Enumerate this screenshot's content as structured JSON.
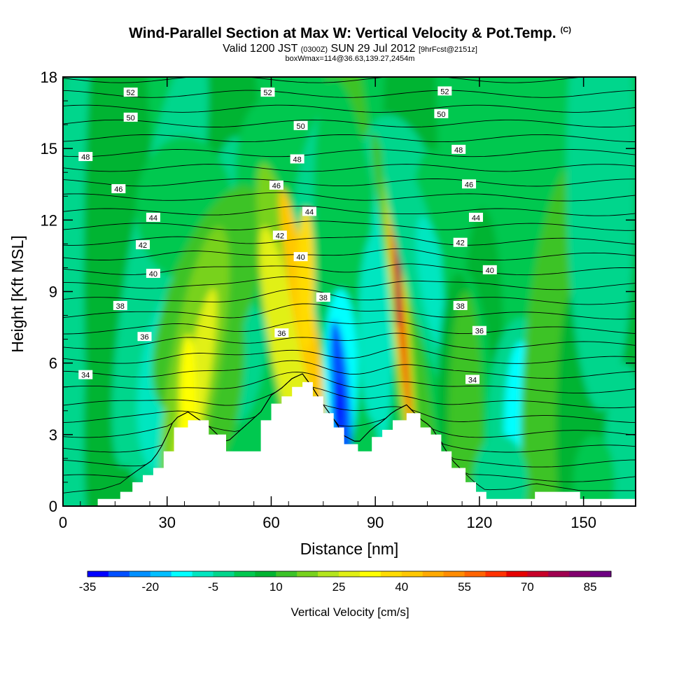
{
  "header": {
    "title": "Wind-Parallel Section at Max W: Vertical Velocity & Pot.Temp.",
    "copyright_mark": "(C)",
    "valid_prefix": "Valid 1200 JST",
    "valid_utc": "(0300Z)",
    "valid_date": "SUN 29 Jul 2012",
    "forecast_info": "[9hrFcst@2151z]",
    "box_info": "boxWmax=114@36.63,139.27,2454m"
  },
  "chart_data": {
    "type": "heatmap",
    "xlabel": "Distance [nm]",
    "ylabel": "Height [Kft MSL]",
    "xlim": [
      0,
      165
    ],
    "ylim": [
      0,
      18
    ],
    "x_ticks": [
      0,
      30,
      60,
      90,
      120,
      150
    ],
    "y_ticks": [
      0,
      3,
      6,
      9,
      12,
      15,
      18
    ],
    "colorbar": {
      "title": "Vertical Velocity [cm/s]",
      "tick_labels": [
        "-35",
        "-20",
        "-5",
        "10",
        "25",
        "40",
        "55",
        "70",
        "85"
      ],
      "levels_start": -35,
      "level_step": 5,
      "colors": [
        "#0000ff",
        "#0050ff",
        "#0090ff",
        "#00bfff",
        "#00ffff",
        "#00e6c0",
        "#00d68c",
        "#00c850",
        "#00b432",
        "#3cc328",
        "#78d21e",
        "#b4e61e",
        "#e1f014",
        "#ffff00",
        "#ffdc00",
        "#ffc800",
        "#ffaa00",
        "#ff8c00",
        "#ff6400",
        "#ff3200",
        "#e60000",
        "#c80028",
        "#a00050",
        "#82006e",
        "#6e0082"
      ]
    },
    "contour_labels": [
      {
        "text": "52",
        "x": 19.5,
        "y": 17.35
      },
      {
        "text": "52",
        "x": 59,
        "y": 17.35
      },
      {
        "text": "52",
        "x": 110,
        "y": 17.4
      },
      {
        "text": "50",
        "x": 19.5,
        "y": 16.3
      },
      {
        "text": "50",
        "x": 68.5,
        "y": 15.95
      },
      {
        "text": "50",
        "x": 109,
        "y": 16.45
      },
      {
        "text": "48",
        "x": 6.5,
        "y": 14.65
      },
      {
        "text": "48",
        "x": 67.5,
        "y": 14.55
      },
      {
        "text": "48",
        "x": 114,
        "y": 14.95
      },
      {
        "text": "46",
        "x": 16,
        "y": 13.3
      },
      {
        "text": "46",
        "x": 61.5,
        "y": 13.45
      },
      {
        "text": "46",
        "x": 117,
        "y": 13.5
      },
      {
        "text": "44",
        "x": 26,
        "y": 12.1
      },
      {
        "text": "44",
        "x": 71,
        "y": 12.35
      },
      {
        "text": "44",
        "x": 119,
        "y": 12.1
      },
      {
        "text": "42",
        "x": 23,
        "y": 10.95
      },
      {
        "text": "42",
        "x": 62.5,
        "y": 11.35
      },
      {
        "text": "42",
        "x": 114.5,
        "y": 11.05
      },
      {
        "text": "40",
        "x": 26,
        "y": 9.75
      },
      {
        "text": "40",
        "x": 68.5,
        "y": 10.45
      },
      {
        "text": "40",
        "x": 123,
        "y": 9.9
      },
      {
        "text": "38",
        "x": 16.5,
        "y": 8.4
      },
      {
        "text": "38",
        "x": 75,
        "y": 8.75
      },
      {
        "text": "38",
        "x": 114.5,
        "y": 8.4
      },
      {
        "text": "36",
        "x": 23.5,
        "y": 7.1
      },
      {
        "text": "36",
        "x": 63,
        "y": 7.25
      },
      {
        "text": "36",
        "x": 120,
        "y": 7.35
      },
      {
        "text": "34",
        "x": 6.5,
        "y": 5.5
      },
      {
        "text": "34",
        "x": 118,
        "y": 5.3
      }
    ],
    "terrain": [
      [
        0,
        0
      ],
      [
        10,
        0.3
      ],
      [
        16.5,
        0.6
      ],
      [
        20,
        1.0
      ],
      [
        23,
        1.3
      ],
      [
        26,
        1.6
      ],
      [
        29,
        2.3
      ],
      [
        32,
        3.3
      ],
      [
        36,
        3.6
      ],
      [
        42,
        3.0
      ],
      [
        47,
        2.3
      ],
      [
        57,
        3.6
      ],
      [
        60,
        4.3
      ],
      [
        63,
        4.6
      ],
      [
        66,
        5.0
      ],
      [
        69,
        5.2
      ],
      [
        72,
        4.6
      ],
      [
        75,
        3.9
      ],
      [
        78,
        3.3
      ],
      [
        81,
        2.6
      ],
      [
        85,
        2.3
      ],
      [
        89,
        2.9
      ],
      [
        92,
        3.2
      ],
      [
        95,
        3.6
      ],
      [
        99,
        3.9
      ],
      [
        103,
        3.3
      ],
      [
        106,
        3.0
      ],
      [
        109,
        2.3
      ],
      [
        112,
        1.6
      ],
      [
        116,
        1.0
      ],
      [
        119,
        0.6
      ],
      [
        122,
        0.3
      ],
      [
        127,
        0.3
      ],
      [
        136,
        0.6
      ],
      [
        149,
        0.3
      ],
      [
        155,
        0.3
      ],
      [
        165,
        0.3
      ]
    ]
  }
}
